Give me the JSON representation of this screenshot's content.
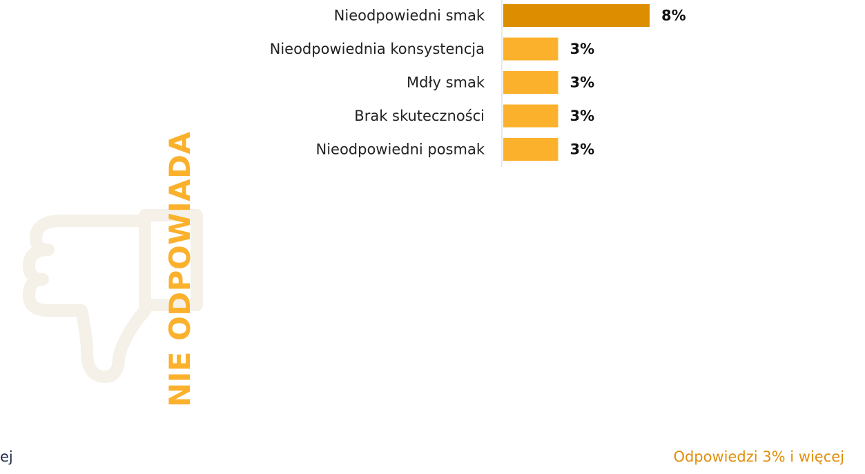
{
  "chart_data": {
    "type": "bar",
    "orientation": "horizontal",
    "title": "NIE ODPOWIADA",
    "categories": [
      "Nieodpowiedni smak",
      "Nieodpowiednia konsystencja",
      "Mdły smak",
      "Brak skuteczności",
      "Nieodpowiedni posmak"
    ],
    "values": [
      8,
      3,
      3,
      3,
      3
    ],
    "value_labels": [
      "8%",
      "3%",
      "3%",
      "3%",
      "3%"
    ],
    "xlim": [
      0,
      10
    ],
    "grid": false,
    "legend": "none",
    "colors": {
      "highlight_bar": "#dd8e00",
      "bar": "#fcb12d",
      "title": "#fbb12c"
    }
  },
  "footnote": {
    "left_text": "ej",
    "right_text": "Odpowiedzi 3% i więcej"
  },
  "decoration": {
    "icon": "thumbs-down-icon"
  }
}
